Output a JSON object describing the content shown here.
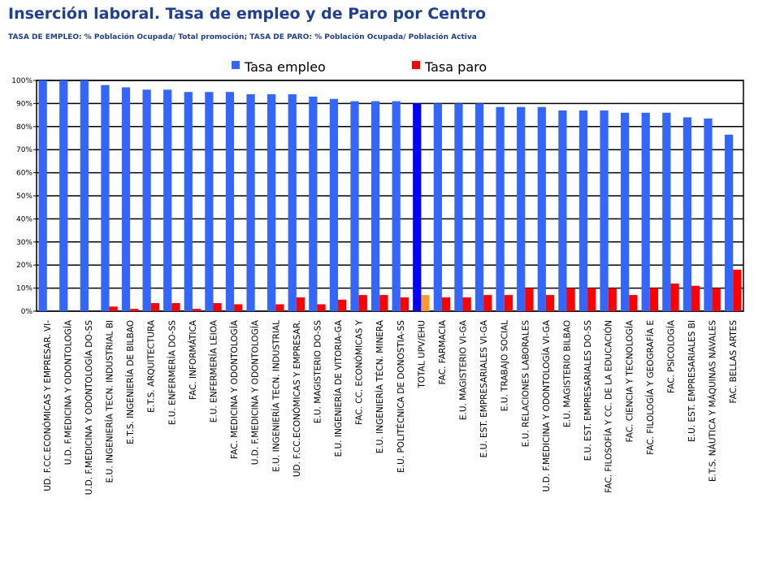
{
  "page": {
    "title": "Inserción laboral. Tasa de empleo y de Paro por Centro",
    "subtitle": "TASA DE EMPLEO: % Población Ocupada/ Total promoción; TASA DE PARO: % Población Ocupada/ Población Activa"
  },
  "colors": {
    "empleo": "#3366ff",
    "paro": "#ff0000",
    "total_empleo": "#0000ff",
    "total_paro": "#ff9933",
    "plot_bg": "#ffffff",
    "grid": "#000000"
  },
  "chart_data": {
    "type": "bar",
    "legend_position": "top",
    "grid": true,
    "ylim": [
      0,
      100
    ],
    "y_ticks": [
      "0%",
      "10%",
      "20%",
      "30%",
      "40%",
      "50%",
      "60%",
      "70%",
      "80%",
      "90%",
      "100%"
    ],
    "highlight_category": "TOTAL UPV/EHU",
    "categories": [
      "UD. F.CC.ECONÓMICAS Y EMPRESAR. VI-",
      "U.D. F.MEDICINA Y ODONTOLOGÍA",
      "U.D. F.MEDICINA Y ODONTOLOGÍA DO-SS",
      "E.U. INGENIERÍA TECN. INDUSTRIAL BI",
      "E.T.S. INGENIERÍA DE BILBAO",
      "E.T.S. ARQUITECTURA",
      "E.U. ENFERMERÍA DO-SS",
      "FAC. INFORMÁTICA",
      "E.U. ENFERMERÍA LEIOA",
      "FAC. MEDICINA Y ODONTOLOGÍA",
      "U.D. F.MEDICINA Y ODONTOLOGÍA",
      "E.U. INGENIERÍA TECN. INDUSTRIAL",
      "UD. F.CC.ECONÓMICAS Y EMPRESAR.",
      "E.U. MAGISTERIO DO-SS",
      "E.U. INGENIERÍA DE VITORIA-GA",
      "FAC. CC. ECONÓMICAS Y",
      "E.U. INGENIERÍA TÉCN. MINERA",
      "E.U. POLITÉCNICA DE DONOSTIA-SS",
      "TOTAL UPV/EHU",
      "FAC. FARMACIA",
      "E.U. MAGISTERIO VI-GA",
      "E.U. EST. EMPRESARIALES VI-GA",
      "E.U. TRABAJO SOCIAL",
      "E.U. RELACIONES LABORALES",
      "U.D. F.MEDICINA Y ODONTOLOGÍA VI-GA",
      "E.U. MAGISTERIO BILBAO",
      "E.U. EST. EMPRESARIALES DO-SS",
      "FAC. FILOSOFÍA Y CC. DE LA EDUCACIÓN",
      "FAC. CIENCIA Y TECNOLOGÍA",
      "FAC. FILOLOGÍA Y GEOGRAFÍA E",
      "FAC. PSICOLOGÍA",
      "E.U. EST. EMPRESARIALES BI",
      "E.T.S. NÁUTICA Y MÁQUINAS NAVALES",
      "FAC. BELLAS ARTES"
    ],
    "series": [
      {
        "name": "Tasa empleo",
        "values": [
          100,
          100,
          100,
          98,
          97,
          96,
          96,
          95,
          95,
          95,
          94,
          94,
          94,
          93,
          92,
          91,
          91,
          91,
          90,
          90,
          90,
          90,
          88.5,
          88.5,
          88.5,
          87,
          87,
          87,
          86,
          86,
          86,
          84,
          83.5,
          76.5
        ]
      },
      {
        "name": "Tasa paro",
        "values": [
          0,
          0,
          0,
          2,
          1,
          3.5,
          3.5,
          1,
          3.5,
          3,
          0,
          3,
          6,
          3,
          5,
          7,
          7,
          6,
          7,
          6,
          6,
          7,
          7,
          10,
          7,
          10,
          10,
          10,
          7,
          10,
          12,
          11,
          10,
          18
        ]
      }
    ]
  }
}
